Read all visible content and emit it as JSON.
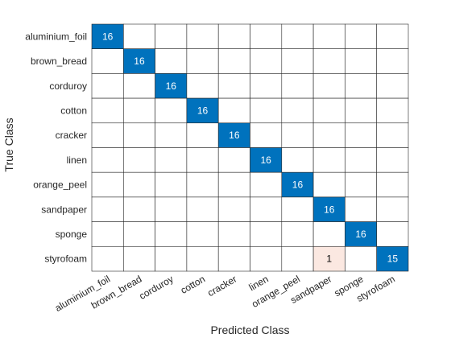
{
  "chart_data": {
    "type": "heatmap",
    "title": "",
    "xlabel": "Predicted Class",
    "ylabel": "True Class",
    "classes": [
      "aluminium_foil",
      "brown_bread",
      "corduroy",
      "cotton",
      "cracker",
      "linen",
      "orange_peel",
      "sandpaper",
      "sponge",
      "styrofoam"
    ],
    "matrix": [
      [
        16,
        0,
        0,
        0,
        0,
        0,
        0,
        0,
        0,
        0
      ],
      [
        0,
        16,
        0,
        0,
        0,
        0,
        0,
        0,
        0,
        0
      ],
      [
        0,
        0,
        16,
        0,
        0,
        0,
        0,
        0,
        0,
        0
      ],
      [
        0,
        0,
        0,
        16,
        0,
        0,
        0,
        0,
        0,
        0
      ],
      [
        0,
        0,
        0,
        0,
        16,
        0,
        0,
        0,
        0,
        0
      ],
      [
        0,
        0,
        0,
        0,
        0,
        16,
        0,
        0,
        0,
        0
      ],
      [
        0,
        0,
        0,
        0,
        0,
        0,
        16,
        0,
        0,
        0
      ],
      [
        0,
        0,
        0,
        0,
        0,
        0,
        0,
        16,
        0,
        0
      ],
      [
        0,
        0,
        0,
        0,
        0,
        0,
        0,
        0,
        16,
        0
      ],
      [
        0,
        0,
        0,
        0,
        0,
        0,
        0,
        1,
        0,
        15
      ]
    ],
    "colors": {
      "diagonal": "#0072bd",
      "off_diagonal": "#fbe8e1",
      "empty": "#ffffff",
      "grid": "#262626",
      "diagonal_text": "#ffffff",
      "off_diagonal_text": "#000000"
    }
  }
}
